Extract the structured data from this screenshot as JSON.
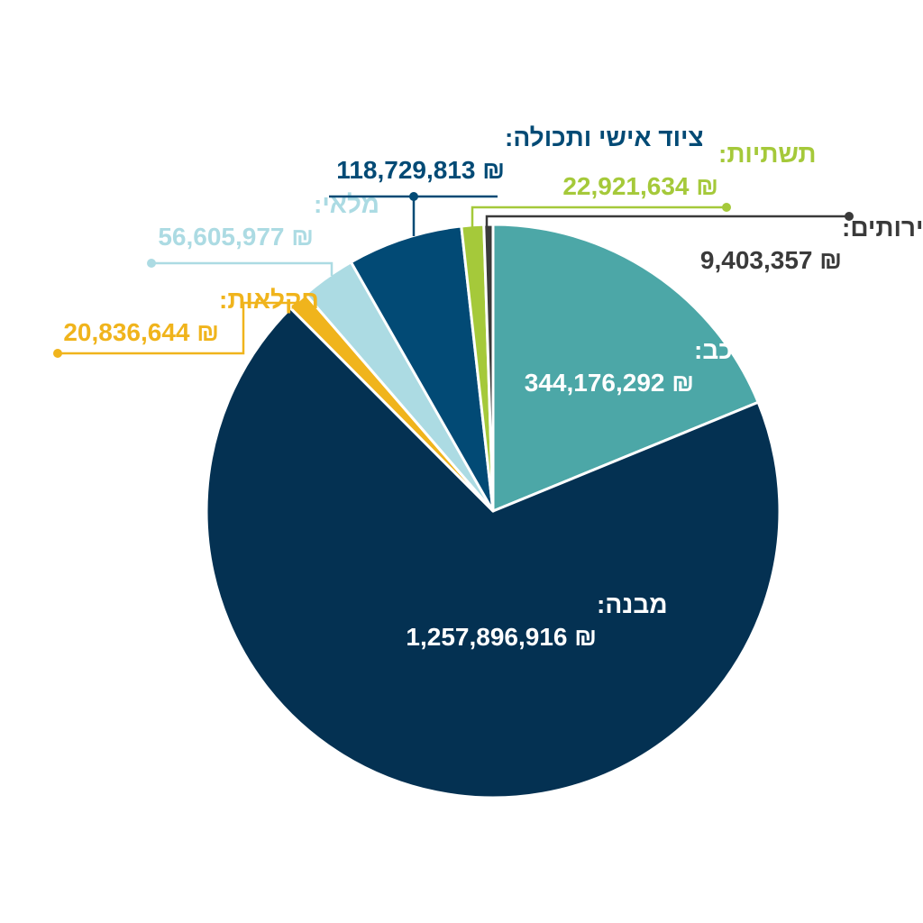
{
  "chart_data": {
    "type": "pie",
    "title": "",
    "currency_symbol": "₪",
    "slices": [
      {
        "label": "רכב:",
        "value": 344176292,
        "value_text": "344,176,292",
        "color": "#4ca7a7",
        "text_color": "#ffffff"
      },
      {
        "label": "מבנה:",
        "value": 1257896916,
        "value_text": "1,257,896,916",
        "color": "#043152",
        "text_color": "#ffffff"
      },
      {
        "label": "חקלאות:",
        "value": 20836644,
        "value_text": "20,836,644",
        "color": "#f0b41c",
        "text_color": "#f0b41c"
      },
      {
        "label": "מלאי:",
        "value": 56605977,
        "value_text": "56,605,977",
        "color": "#acdbe3",
        "text_color": "#acdbe3"
      },
      {
        "label": "ציוד אישי ותכולה:",
        "value": 118729813,
        "value_text": "118,729,813",
        "color": "#024a75",
        "text_color": "#024a75"
      },
      {
        "label": "תשתיות:",
        "value": 22921634,
        "value_text": "22,921,634",
        "color": "#a5c93a",
        "text_color": "#a5c93a"
      },
      {
        "label": "שירותים:",
        "value": 9403357,
        "value_text": "9,403,357",
        "color": "#3a3a3a",
        "text_color": "#3a3a3a"
      }
    ],
    "grid": false,
    "legend": "none"
  }
}
